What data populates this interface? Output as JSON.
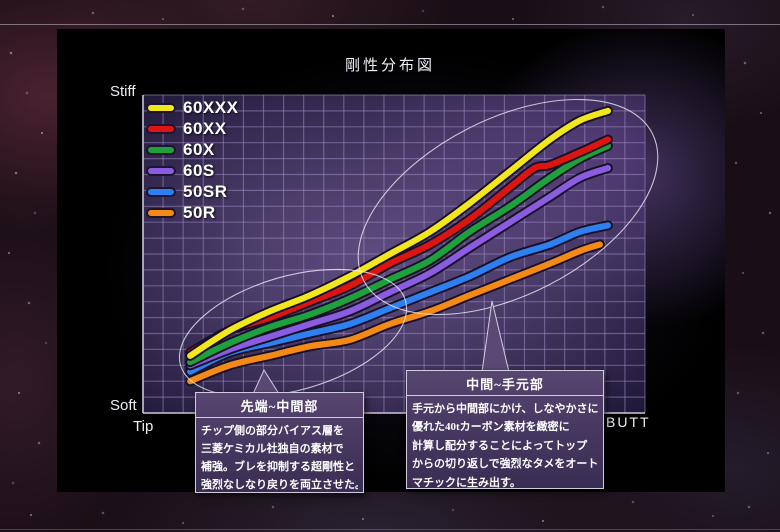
{
  "title": "剛性分布図",
  "axis": {
    "top_left": "Stiff",
    "bottom_left": "Soft",
    "x_left": "Tip",
    "x_right": "BUTT"
  },
  "legend": [
    {
      "label": "60XXX",
      "color": "#f2e71d"
    },
    {
      "label": "60XX",
      "color": "#dc1412"
    },
    {
      "label": "60X",
      "color": "#1ea03c"
    },
    {
      "label": "60S",
      "color": "#8a5ce0"
    },
    {
      "label": "50SR",
      "color": "#2e7ff0"
    },
    {
      "label": "50R",
      "color": "#f38a16"
    }
  ],
  "callouts": {
    "left": {
      "title": "先端~中間部",
      "lines": [
        "チップ側の部分バイアス層を",
        "三菱ケミカル社独自の素材で",
        "補強。ブレを抑制する超剛性と",
        "強烈なしなり戻りを両立させた。"
      ]
    },
    "right": {
      "title": "中間~手元部",
      "lines": [
        "手元から中間部にかけ、しなやかさに",
        "優れた40tカーボン素材を緻密に",
        "計算し配分することによってトップ",
        "からの切り返しで強烈なタメをオート",
        "マチックに生み出す。"
      ]
    }
  },
  "chart_data": {
    "type": "line",
    "title": "剛性分布図",
    "xlabel_left": "Tip",
    "xlabel_right": "BUTT",
    "ylabel_top": "Stiff",
    "ylabel_bottom": "Soft",
    "x_unit": "rod position, % from tip",
    "y_unit": "relative stiffness, % (Soft=0, Stiff=100)",
    "xlim": [
      0,
      100
    ],
    "ylim": [
      0,
      100
    ],
    "grid": true,
    "legend_position": "top-left",
    "series": [
      {
        "name": "60XXX",
        "color": "#f2e71d",
        "points": [
          [
            9.4,
            18
          ],
          [
            17.3,
            26
          ],
          [
            25.3,
            32
          ],
          [
            33.3,
            37
          ],
          [
            41.2,
            43
          ],
          [
            49.2,
            50
          ],
          [
            57.2,
            57
          ],
          [
            65.1,
            66
          ],
          [
            73.1,
            76
          ],
          [
            81.1,
            86
          ],
          [
            87.1,
            92
          ],
          [
            92.6,
            95
          ]
        ]
      },
      {
        "name": "60XX",
        "color": "#dc1412",
        "points": [
          [
            9.4,
            19
          ],
          [
            17.3,
            26
          ],
          [
            25.3,
            30
          ],
          [
            33.3,
            35
          ],
          [
            41.2,
            40
          ],
          [
            49.2,
            47
          ],
          [
            57.2,
            53
          ],
          [
            65.1,
            61
          ],
          [
            73.1,
            71
          ],
          [
            78,
            77
          ],
          [
            81.1,
            78
          ],
          [
            87.1,
            82
          ],
          [
            92.6,
            86
          ]
        ]
      },
      {
        "name": "60X",
        "color": "#1ea03c",
        "points": [
          [
            9.4,
            16
          ],
          [
            17.3,
            22
          ],
          [
            25.3,
            27
          ],
          [
            33.3,
            31
          ],
          [
            41.2,
            36
          ],
          [
            49.2,
            42
          ],
          [
            57.2,
            48
          ],
          [
            65.1,
            57
          ],
          [
            73.1,
            65
          ],
          [
            81.1,
            74
          ],
          [
            87.1,
            80
          ],
          [
            92.6,
            84
          ]
        ]
      },
      {
        "name": "60S",
        "color": "#8a5ce0",
        "points": [
          [
            9.4,
            15
          ],
          [
            17.3,
            20
          ],
          [
            25.3,
            24
          ],
          [
            33.3,
            28
          ],
          [
            41.2,
            32
          ],
          [
            49.2,
            38
          ],
          [
            57.2,
            44
          ],
          [
            65.1,
            52
          ],
          [
            73.1,
            60
          ],
          [
            81.1,
            68
          ],
          [
            87.1,
            74
          ],
          [
            92.6,
            77
          ]
        ]
      },
      {
        "name": "50SR",
        "color": "#2e7ff0",
        "points": [
          [
            9.4,
            13
          ],
          [
            17.3,
            19
          ],
          [
            25.3,
            22
          ],
          [
            33.3,
            25
          ],
          [
            41.2,
            28
          ],
          [
            49.2,
            33
          ],
          [
            57.2,
            38
          ],
          [
            65.1,
            43
          ],
          [
            73.1,
            49
          ],
          [
            81.1,
            53
          ],
          [
            87.1,
            57
          ],
          [
            92.6,
            59
          ]
        ]
      },
      {
        "name": "50R",
        "color": "#f38a16",
        "points": [
          [
            9.4,
            10
          ],
          [
            17.3,
            15
          ],
          [
            25.3,
            18
          ],
          [
            33.3,
            21
          ],
          [
            41.2,
            23
          ],
          [
            49.2,
            28
          ],
          [
            57.2,
            32
          ],
          [
            65.1,
            37
          ],
          [
            73.1,
            42
          ],
          [
            81.1,
            47
          ],
          [
            87.1,
            51
          ],
          [
            91,
            53
          ]
        ]
      }
    ],
    "annotations": [
      {
        "region": "tip-to-middle",
        "label": "先端~中間部"
      },
      {
        "region": "middle-to-butt",
        "label": "中間~手元部"
      }
    ]
  }
}
